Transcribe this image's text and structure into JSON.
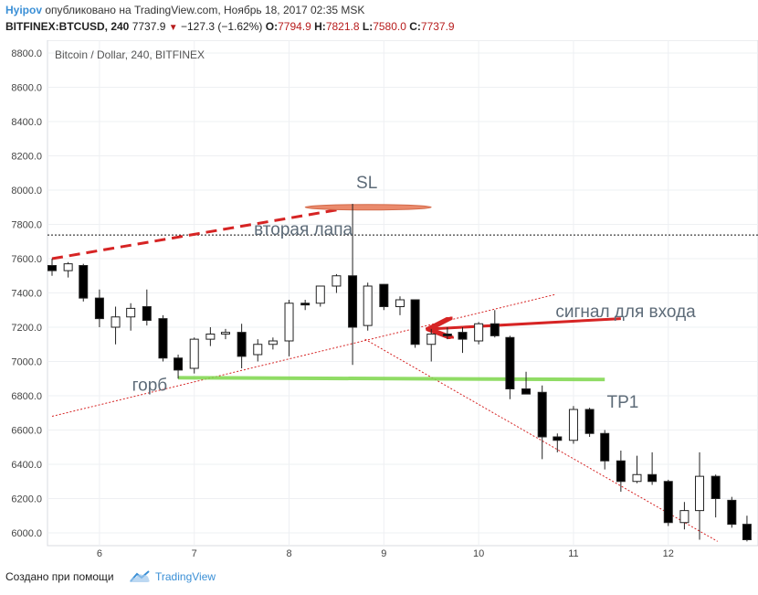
{
  "header": {
    "user": "Hyipov",
    "published": "опубликовано на TradingView.com, Ноябрь 18, 2017 02:35 MSK",
    "symbol_tf": "BITFINEX:BTCUSD, 240",
    "last": "7737.9",
    "change": "−127.3 (−1.62%)",
    "o_label": "O:",
    "o": "7794.9",
    "h_label": "H:",
    "h": "7821.8",
    "l_label": "L:",
    "l": "7580.0",
    "c_label": "C:",
    "c": "7737.9"
  },
  "footer": {
    "created": "Создано при помощи",
    "brand": "TradingView"
  },
  "colors": {
    "up_body": "#ffffff",
    "down_body": "#000000",
    "red_line": "#d62424",
    "green_line": "#7cd64a",
    "sl_ellipse": "#e8826a",
    "annotation_text": "#5d6b78"
  },
  "chart_data": {
    "type": "candlestick",
    "title": "Bitcoin / Dollar, 240, BITFINEX",
    "ylim": [
      5950,
      8850
    ],
    "yticks": [
      "8800.0",
      "8600.0",
      "8400.0",
      "8200.0",
      "8000.0",
      "7800.0",
      "7600.0",
      "7400.0",
      "7200.0",
      "7000.0",
      "6800.0",
      "6600.0",
      "6400.0",
      "6200.0",
      "6000.0"
    ],
    "xticks": [
      {
        "label": "6",
        "x": 6
      },
      {
        "label": "7",
        "x": 7
      },
      {
        "label": "8",
        "x": 8
      },
      {
        "label": "9",
        "x": 9
      },
      {
        "label": "10",
        "x": 10
      },
      {
        "label": "11",
        "x": 11
      },
      {
        "label": "12",
        "x": 12
      }
    ],
    "xlim": [
      5.5,
      12.85
    ],
    "current_price": 7737.9,
    "candles": [
      {
        "x": 5.5,
        "o": 7560,
        "h": 7600,
        "l": 7500,
        "c": 7530
      },
      {
        "x": 5.67,
        "o": 7530,
        "h": 7580,
        "l": 7490,
        "c": 7570
      },
      {
        "x": 5.83,
        "o": 7560,
        "h": 7570,
        "l": 7350,
        "c": 7370
      },
      {
        "x": 6.0,
        "o": 7370,
        "h": 7420,
        "l": 7200,
        "c": 7250
      },
      {
        "x": 6.17,
        "o": 7200,
        "h": 7320,
        "l": 7100,
        "c": 7260
      },
      {
        "x": 6.33,
        "o": 7260,
        "h": 7340,
        "l": 7180,
        "c": 7310
      },
      {
        "x": 6.5,
        "o": 7320,
        "h": 7420,
        "l": 7210,
        "c": 7240
      },
      {
        "x": 6.67,
        "o": 7250,
        "h": 7270,
        "l": 7000,
        "c": 7020
      },
      {
        "x": 6.83,
        "o": 7020,
        "h": 7040,
        "l": 6900,
        "c": 6950
      },
      {
        "x": 7.0,
        "o": 6960,
        "h": 7140,
        "l": 6930,
        "c": 7130
      },
      {
        "x": 7.17,
        "o": 7130,
        "h": 7200,
        "l": 7090,
        "c": 7160
      },
      {
        "x": 7.33,
        "o": 7160,
        "h": 7190,
        "l": 7130,
        "c": 7170
      },
      {
        "x": 7.5,
        "o": 7170,
        "h": 7220,
        "l": 6960,
        "c": 7030
      },
      {
        "x": 7.67,
        "o": 7040,
        "h": 7130,
        "l": 7000,
        "c": 7100
      },
      {
        "x": 7.83,
        "o": 7100,
        "h": 7140,
        "l": 7070,
        "c": 7120
      },
      {
        "x": 8.0,
        "o": 7120,
        "h": 7360,
        "l": 7030,
        "c": 7340
      },
      {
        "x": 8.17,
        "o": 7340,
        "h": 7360,
        "l": 7300,
        "c": 7330
      },
      {
        "x": 8.33,
        "o": 7340,
        "h": 7440,
        "l": 7320,
        "c": 7440
      },
      {
        "x": 8.5,
        "o": 7440,
        "h": 7510,
        "l": 7400,
        "c": 7500
      },
      {
        "x": 8.67,
        "o": 7500,
        "h": 7920,
        "l": 6980,
        "c": 7200
      },
      {
        "x": 8.83,
        "o": 7210,
        "h": 7460,
        "l": 7180,
        "c": 7440
      },
      {
        "x": 9.0,
        "o": 7450,
        "h": 7450,
        "l": 7300,
        "c": 7320
      },
      {
        "x": 9.17,
        "o": 7320,
        "h": 7380,
        "l": 7270,
        "c": 7360
      },
      {
        "x": 9.33,
        "o": 7360,
        "h": 7360,
        "l": 7080,
        "c": 7100
      },
      {
        "x": 9.5,
        "o": 7100,
        "h": 7190,
        "l": 7000,
        "c": 7160
      },
      {
        "x": 9.67,
        "o": 7160,
        "h": 7200,
        "l": 7130,
        "c": 7150
      },
      {
        "x": 9.83,
        "o": 7170,
        "h": 7200,
        "l": 7050,
        "c": 7130
      },
      {
        "x": 10.0,
        "o": 7120,
        "h": 7230,
        "l": 7100,
        "c": 7220
      },
      {
        "x": 10.17,
        "o": 7220,
        "h": 7300,
        "l": 7140,
        "c": 7150
      },
      {
        "x": 10.33,
        "o": 7140,
        "h": 7150,
        "l": 6780,
        "c": 6840
      },
      {
        "x": 10.5,
        "o": 6840,
        "h": 6940,
        "l": 6820,
        "c": 6810
      },
      {
        "x": 10.67,
        "o": 6820,
        "h": 6860,
        "l": 6430,
        "c": 6560
      },
      {
        "x": 10.83,
        "o": 6560,
        "h": 6580,
        "l": 6470,
        "c": 6540
      },
      {
        "x": 11.0,
        "o": 6540,
        "h": 6740,
        "l": 6520,
        "c": 6720
      },
      {
        "x": 11.17,
        "o": 6720,
        "h": 6730,
        "l": 6560,
        "c": 6580
      },
      {
        "x": 11.33,
        "o": 6580,
        "h": 6600,
        "l": 6370,
        "c": 6420
      },
      {
        "x": 11.5,
        "o": 6420,
        "h": 6480,
        "l": 6240,
        "c": 6300
      },
      {
        "x": 11.67,
        "o": 6300,
        "h": 6450,
        "l": 6290,
        "c": 6340
      },
      {
        "x": 11.83,
        "o": 6340,
        "h": 6470,
        "l": 6280,
        "c": 6300
      },
      {
        "x": 12.0,
        "o": 6300,
        "h": 6310,
        "l": 6040,
        "c": 6060
      },
      {
        "x": 12.17,
        "o": 6060,
        "h": 6180,
        "l": 6020,
        "c": 6130
      },
      {
        "x": 12.33,
        "o": 6130,
        "h": 6470,
        "l": 5960,
        "c": 6330
      },
      {
        "x": 12.5,
        "o": 6330,
        "h": 6340,
        "l": 6090,
        "c": 6200
      },
      {
        "x": 12.67,
        "o": 6190,
        "h": 6210,
        "l": 6030,
        "c": 6050
      },
      {
        "x": 12.83,
        "o": 6050,
        "h": 6100,
        "l": 5950,
        "c": 5960
      }
    ],
    "annotations": [
      {
        "text": "SL",
        "x": 8.82,
        "y": 8010
      },
      {
        "text": "вторая лапа",
        "x": 8.15,
        "y": 7740
      },
      {
        "text": "сигнал для входа",
        "x": 11.55,
        "y": 7260
      },
      {
        "text": "горб",
        "x": 6.53,
        "y": 6830
      },
      {
        "text": "TP1",
        "x": 11.52,
        "y": 6730
      }
    ],
    "lines": [
      {
        "name": "red-dashed-trend",
        "style": "dashed",
        "color": "#d62424",
        "from": {
          "x": 5.5,
          "y": 7600
        },
        "to": {
          "x": 8.67,
          "y": 7900
        }
      },
      {
        "name": "red-dotted-uptrend",
        "style": "dotted",
        "color": "#d62424",
        "from": {
          "x": 5.5,
          "y": 6680
        },
        "to": {
          "x": 10.8,
          "y": 7390
        }
      },
      {
        "name": "red-dotted-downtrend",
        "style": "dotted",
        "color": "#d62424",
        "from": {
          "x": 8.8,
          "y": 7130
        },
        "to": {
          "x": 12.52,
          "y": 5950
        }
      },
      {
        "name": "green-level",
        "style": "solid",
        "color": "#7cd64a",
        "from": {
          "x": 6.83,
          "y": 6905
        },
        "to": {
          "x": 11.33,
          "y": 6895
        }
      },
      {
        "name": "entry-arrow",
        "style": "arrow",
        "color": "#d62424",
        "from": {
          "x": 11.5,
          "y": 7250
        },
        "to": {
          "x": 9.5,
          "y": 7190
        }
      }
    ],
    "sl_level": {
      "from": 8.17,
      "to": 9.5,
      "y": 7900
    }
  }
}
